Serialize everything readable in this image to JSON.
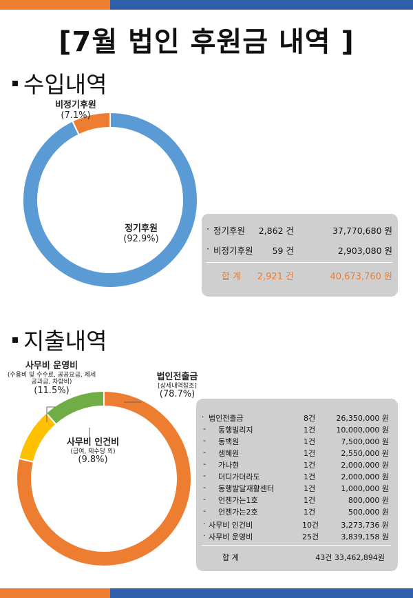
{
  "title": "[7월 법인 후원금 내역 ]",
  "colors": {
    "orange": "#ed7d31",
    "blue": "#5b9bd5",
    "yellow": "#ffc000",
    "green": "#70ad47",
    "navy": "#2e5fab",
    "box": "#d0cfcf"
  },
  "income": {
    "heading": "수입내역",
    "chart_data": {
      "type": "pie",
      "title": "수입내역",
      "slices": [
        {
          "name": "정기후원",
          "percent": 92.9,
          "percent_label": "(92.9%)"
        },
        {
          "name": "비정기후원",
          "percent": 7.1,
          "percent_label": "(7.1%)"
        }
      ]
    },
    "rows": [
      {
        "bullet": "·",
        "name": "정기후원",
        "count": "2,862 건",
        "amount": "37,770,680 원"
      },
      {
        "bullet": "·",
        "name": "비정기후원",
        "count": "59 건",
        "amount": "2,903,080 원"
      }
    ],
    "total": {
      "label": "합   계",
      "count": "2,921 건",
      "amount": "40,673,760 원"
    }
  },
  "expense": {
    "heading": "지출내역",
    "chart_data": {
      "type": "pie",
      "title": "지출내역",
      "slices": [
        {
          "name": "법인전출금",
          "sub": "[상세내역참조]",
          "percent": 78.7,
          "percent_label": "(78.7%)"
        },
        {
          "name": "사무비 운영비",
          "sub": "(수용비 및 수수료, 공공요금, 제세공과금, 차량비)",
          "percent": 11.5,
          "percent_label": "(11.5%)"
        },
        {
          "name": "사무비 인건비",
          "sub": "(급여, 제수당 외)",
          "percent": 9.8,
          "percent_label": "(9.8%)"
        }
      ]
    },
    "main_row": {
      "bullet": "·",
      "name": "법인전출금",
      "count": "8건",
      "amount": "26,350,000 원"
    },
    "detail_rows": [
      {
        "dash": "-",
        "name": "동행빌리지",
        "count": "1건",
        "amount": "10,000,000 원"
      },
      {
        "dash": "-",
        "name": "동백원",
        "count": "1건",
        "amount": "7,500,000 원"
      },
      {
        "dash": "-",
        "name": "샘혜원",
        "count": "1건",
        "amount": "2,550,000 원"
      },
      {
        "dash": "-",
        "name": "가나현",
        "count": "1건",
        "amount": "2,000,000 원"
      },
      {
        "dash": "-",
        "name": "더디가더라도",
        "count": "1건",
        "amount": "2,000,000 원"
      },
      {
        "dash": "-",
        "name": "동행발달재활센터",
        "count": "1건",
        "amount": "1,000,000 원"
      },
      {
        "dash": "-",
        "name": "언젠가는1호",
        "count": "1건",
        "amount": "800,000 원"
      },
      {
        "dash": "-",
        "name": "언젠가는2호",
        "count": "1건",
        "amount": "500,000 원"
      }
    ],
    "other_rows": [
      {
        "bullet": "·",
        "name": "사무비 인건비",
        "count": "10건",
        "amount": "3,273,736 원"
      },
      {
        "bullet": "·",
        "name": "사무비 운영비",
        "count": "25건",
        "amount": "3,839,158 원"
      }
    ],
    "total": {
      "label": "합  계",
      "count_amount": "43건 33,462,894원"
    }
  }
}
